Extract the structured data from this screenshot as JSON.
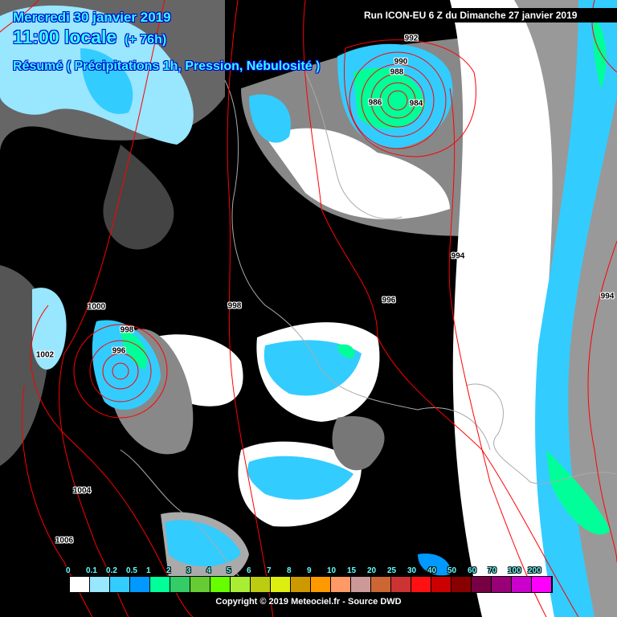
{
  "header": {
    "date_line": "Mercredi 30 janvier 2019",
    "time_line": "11:00 locale",
    "lead_time": "(+ 76h)",
    "summary_line": "Résumé ( Précipitations 1h,  Pression, Nébulosité )",
    "run_info": "Run ICON-EU 6 Z du Dimanche 27 janvier 2019"
  },
  "isobar_labels": [
    "992",
    "990",
    "988",
    "986",
    "984",
    "994",
    "994",
    "996",
    "998",
    "1000",
    "998",
    "996",
    "1002",
    "1004",
    "1006"
  ],
  "legend": {
    "labels": [
      "0",
      "0.1",
      "0.2",
      "0.5",
      "1",
      "2",
      "3",
      "4",
      "5",
      "6",
      "7",
      "8",
      "9",
      "10",
      "15",
      "20",
      "25",
      "30",
      "40",
      "50",
      "60",
      "70",
      "100",
      "200"
    ],
    "colors": [
      "#ffffff",
      "#99e6ff",
      "#33ccff",
      "#0099ff",
      "#00ff99",
      "#33cc66",
      "#66cc33",
      "#66ff00",
      "#aaee33",
      "#bbcc11",
      "#ddee11",
      "#cc9900",
      "#ff9900",
      "#ff9966",
      "#cc9999",
      "#cc6633",
      "#cc3333",
      "#ff1111",
      "#cc0000",
      "#880000",
      "#770044",
      "#990077",
      "#cc00cc",
      "#ff00ff"
    ]
  },
  "copyright": "Copyright © 2019 Meteociel.fr - Source DWD",
  "colors": {
    "isobar": "#ff0000",
    "title": "#33ffff",
    "background": "#000000"
  }
}
